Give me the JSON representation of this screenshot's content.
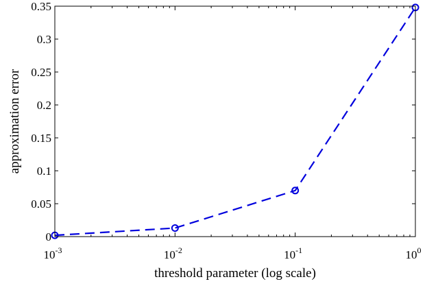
{
  "chart_data": {
    "type": "line",
    "xscale": "log",
    "xlabel": "threshold parameter (log scale)",
    "ylabel": "approximation error",
    "xlim": [
      0.001,
      1
    ],
    "ylim": [
      0,
      0.35
    ],
    "grid": false,
    "xticks": [
      {
        "value": 0.001,
        "base": "10",
        "exp": "-3"
      },
      {
        "value": 0.01,
        "base": "10",
        "exp": "-2"
      },
      {
        "value": 0.1,
        "base": "10",
        "exp": "-1"
      },
      {
        "value": 1,
        "base": "10",
        "exp": "0"
      }
    ],
    "yticks": [
      {
        "value": 0,
        "label": "0"
      },
      {
        "value": 0.05,
        "label": "0.05"
      },
      {
        "value": 0.1,
        "label": "0.1"
      },
      {
        "value": 0.15,
        "label": "0.15"
      },
      {
        "value": 0.2,
        "label": "0.2"
      },
      {
        "value": 0.25,
        "label": "0.25"
      },
      {
        "value": 0.3,
        "label": "0.3"
      },
      {
        "value": 0.35,
        "label": "0.35"
      }
    ],
    "series": [
      {
        "color": "#0000dd",
        "line_style": "dashed",
        "marker": "circle",
        "x": [
          0.001,
          0.01,
          0.1,
          1
        ],
        "y": [
          0.002,
          0.013,
          0.07,
          0.348
        ]
      }
    ]
  }
}
